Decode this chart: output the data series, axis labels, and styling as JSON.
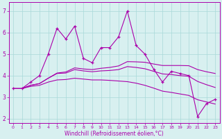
{
  "x": [
    0,
    1,
    2,
    3,
    4,
    5,
    6,
    7,
    8,
    9,
    10,
    11,
    12,
    13,
    14,
    15,
    16,
    17,
    18,
    19,
    20,
    21,
    22,
    23
  ],
  "y_main": [
    3.4,
    3.4,
    3.7,
    4.0,
    5.0,
    6.2,
    5.7,
    6.3,
    4.8,
    4.6,
    5.3,
    5.3,
    5.8,
    7.0,
    5.4,
    5.0,
    4.3,
    3.7,
    4.2,
    4.1,
    4.0,
    2.1,
    2.7,
    2.9
  ],
  "y_smooth1": [
    3.4,
    3.4,
    3.55,
    3.63,
    3.88,
    4.12,
    4.17,
    4.36,
    4.31,
    4.28,
    4.34,
    4.38,
    4.45,
    4.65,
    4.64,
    4.62,
    4.54,
    4.47,
    4.47,
    4.47,
    4.46,
    4.28,
    4.18,
    4.1
  ],
  "y_smooth2": [
    3.4,
    3.4,
    3.55,
    3.63,
    3.88,
    4.1,
    4.12,
    4.28,
    4.22,
    4.18,
    4.22,
    4.24,
    4.28,
    4.42,
    4.38,
    4.32,
    4.2,
    4.08,
    4.05,
    4.0,
    3.97,
    3.73,
    3.58,
    3.45
  ],
  "y_smooth3": [
    3.4,
    3.4,
    3.5,
    3.55,
    3.7,
    3.8,
    3.82,
    3.88,
    3.84,
    3.8,
    3.8,
    3.78,
    3.75,
    3.72,
    3.65,
    3.55,
    3.42,
    3.28,
    3.22,
    3.15,
    3.08,
    2.88,
    2.78,
    2.68
  ],
  "line_color": "#aa00aa",
  "bg_color": "#d8f0f0",
  "xlabel": "Windchill (Refroidissement éolien,°C)",
  "ylim": [
    1.8,
    7.4
  ],
  "xlim": [
    -0.5,
    23.5
  ],
  "yticks": [
    2,
    3,
    4,
    5,
    6,
    7
  ],
  "xticks": [
    0,
    1,
    2,
    3,
    4,
    5,
    6,
    7,
    8,
    9,
    10,
    11,
    12,
    13,
    14,
    15,
    16,
    17,
    18,
    19,
    20,
    21,
    22,
    23
  ],
  "figsize": [
    3.2,
    2.0
  ],
  "dpi": 100
}
